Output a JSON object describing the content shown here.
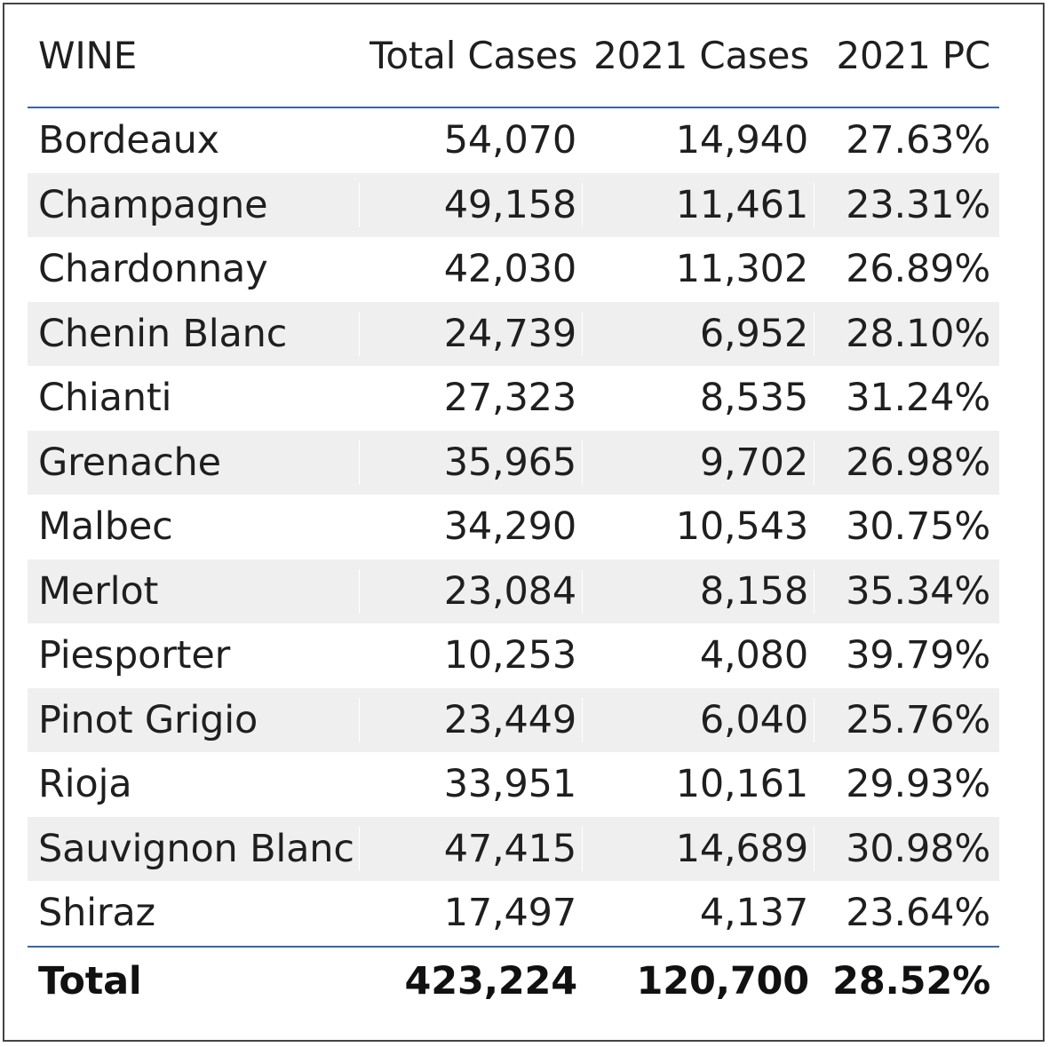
{
  "table": {
    "headers": {
      "wine": "WINE",
      "total_cases": "Total Cases",
      "cases_2021": "2021 Cases",
      "pc_2021": "2021 PC"
    },
    "rows": [
      {
        "wine": "Bordeaux",
        "total_cases": "54,070",
        "cases_2021": "14,940",
        "pc_2021": "27.63%"
      },
      {
        "wine": "Champagne",
        "total_cases": "49,158",
        "cases_2021": "11,461",
        "pc_2021": "23.31%"
      },
      {
        "wine": "Chardonnay",
        "total_cases": "42,030",
        "cases_2021": "11,302",
        "pc_2021": "26.89%"
      },
      {
        "wine": "Chenin Blanc",
        "total_cases": "24,739",
        "cases_2021": "6,952",
        "pc_2021": "28.10%"
      },
      {
        "wine": "Chianti",
        "total_cases": "27,323",
        "cases_2021": "8,535",
        "pc_2021": "31.24%"
      },
      {
        "wine": "Grenache",
        "total_cases": "35,965",
        "cases_2021": "9,702",
        "pc_2021": "26.98%"
      },
      {
        "wine": "Malbec",
        "total_cases": "34,290",
        "cases_2021": "10,543",
        "pc_2021": "30.75%"
      },
      {
        "wine": "Merlot",
        "total_cases": "23,084",
        "cases_2021": "8,158",
        "pc_2021": "35.34%"
      },
      {
        "wine": "Piesporter",
        "total_cases": "10,253",
        "cases_2021": "4,080",
        "pc_2021": "39.79%"
      },
      {
        "wine": "Pinot Grigio",
        "total_cases": "23,449",
        "cases_2021": "6,040",
        "pc_2021": "25.76%"
      },
      {
        "wine": "Rioja",
        "total_cases": "33,951",
        "cases_2021": "10,161",
        "pc_2021": "29.93%"
      },
      {
        "wine": "Sauvignon Blanc",
        "total_cases": "47,415",
        "cases_2021": "14,689",
        "pc_2021": "30.98%"
      },
      {
        "wine": "Shiraz",
        "total_cases": "17,497",
        "cases_2021": "4,137",
        "pc_2021": "23.64%"
      }
    ],
    "total": {
      "wine": "Total",
      "total_cases": "423,224",
      "cases_2021": "120,700",
      "pc_2021": "28.52%"
    }
  },
  "colors": {
    "divider": "#3a66a8",
    "band": "#efefef",
    "frame": "#444444"
  }
}
